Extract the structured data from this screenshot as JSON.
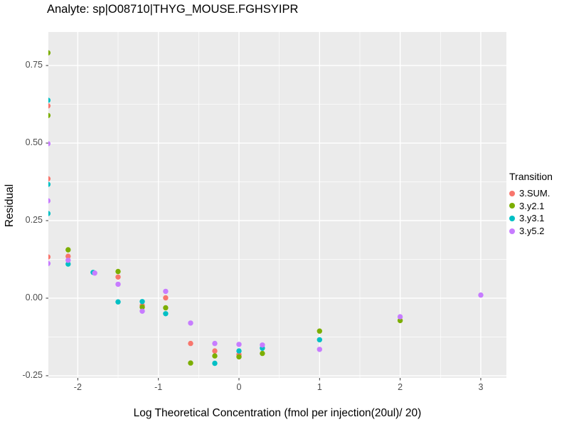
{
  "title": "Analyte: sp|O08710|THYG_MOUSE.FGHSYIPR",
  "chart_data": {
    "type": "scatter",
    "title": "Analyte: sp|O08710|THYG_MOUSE.FGHSYIPR",
    "xlabel": "Log Theoretical Concentration (fmol per injection(20ul)/ 20)",
    "ylabel": "Residual",
    "legend_title": "Transition",
    "legend_position": "right",
    "grid": true,
    "panel_bg": "#EBEBEB",
    "grid_color": "#FFFFFF",
    "tick_color": "#333333",
    "tick_label_color": "#4D4D4D",
    "xlim": [
      -2.365,
      3.318
    ],
    "ylim": [
      -0.257,
      0.858
    ],
    "x_ticks": [
      -2,
      -1,
      0,
      1,
      2,
      3
    ],
    "x_tick_labels": [
      "-2",
      "-1",
      "0",
      "1",
      "2",
      "3"
    ],
    "y_ticks": [
      0.75,
      0.5,
      0.25,
      0,
      -0.25
    ],
    "y_tick_labels": [
      "0.75",
      "0.50",
      "0.25",
      "0.00",
      "-0.25"
    ],
    "x_minor_ticks": [
      -1.5,
      -0.5,
      0.5,
      1.5,
      2.5
    ],
    "y_minor_ticks": [
      0.625,
      0.375,
      0.125,
      -0.125
    ],
    "point_radius": 3.7,
    "series": [
      {
        "name": "3.SUM.",
        "color": "#F8766D",
        "points": [
          [
            -2.37,
            0.62
          ],
          [
            -2.37,
            0.385
          ],
          [
            -2.37,
            0.133
          ],
          [
            -2.12,
            0.135
          ],
          [
            -1.5,
            0.068
          ],
          [
            -1.2,
            -0.024
          ],
          [
            -0.91,
            0.001
          ],
          [
            -0.6,
            -0.146
          ],
          [
            -0.3,
            -0.17
          ],
          [
            0,
            -0.182
          ]
        ]
      },
      {
        "name": "3.y2.1",
        "color": "#7CAE00",
        "points": [
          [
            -2.37,
            0.791
          ],
          [
            -2.37,
            0.589
          ],
          [
            -2.12,
            0.156
          ],
          [
            -1.5,
            0.086
          ],
          [
            -1.2,
            -0.029
          ],
          [
            -0.91,
            -0.031
          ],
          [
            -0.6,
            -0.209
          ],
          [
            -0.3,
            -0.186
          ],
          [
            0,
            -0.189
          ],
          [
            0.29,
            -0.178
          ],
          [
            1,
            -0.106
          ],
          [
            2,
            -0.072
          ]
        ]
      },
      {
        "name": "3.y3.1",
        "color": "#00BFC4",
        "points": [
          [
            -2.37,
            0.638
          ],
          [
            -2.37,
            0.367
          ],
          [
            -2.37,
            0.273
          ],
          [
            -2.12,
            0.11
          ],
          [
            -1.81,
            0.083
          ],
          [
            -1.5,
            -0.012
          ],
          [
            -1.2,
            -0.011
          ],
          [
            -0.91,
            -0.05
          ],
          [
            -0.3,
            -0.21
          ],
          [
            0,
            -0.17
          ],
          [
            0.29,
            -0.161
          ],
          [
            1,
            -0.134
          ]
        ]
      },
      {
        "name": "3.y5.2",
        "color": "#C77CFF",
        "points": [
          [
            -2.37,
            0.498
          ],
          [
            -2.37,
            0.314
          ],
          [
            -2.37,
            0.112
          ],
          [
            -2.12,
            0.122
          ],
          [
            -1.79,
            0.081
          ],
          [
            -1.5,
            0.045
          ],
          [
            -1.2,
            -0.042
          ],
          [
            -0.91,
            0.022
          ],
          [
            -0.6,
            -0.08
          ],
          [
            -0.3,
            -0.146
          ],
          [
            0,
            -0.149
          ],
          [
            0.29,
            -0.151
          ],
          [
            1,
            -0.165
          ],
          [
            2,
            -0.06
          ],
          [
            3,
            0.01
          ]
        ]
      }
    ]
  }
}
